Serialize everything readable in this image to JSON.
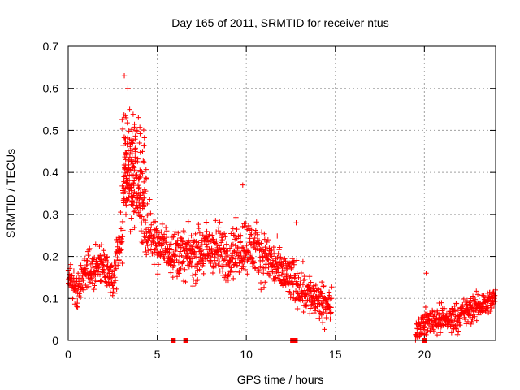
{
  "chart_data": {
    "type": "scatter",
    "title": "Day 165 of 2011, SRMTID for receiver ntus",
    "xlabel": "GPS time / hours",
    "ylabel": "SRMTID / TECUs",
    "xlim": [
      0,
      24
    ],
    "ylim": [
      0,
      0.7
    ],
    "x_ticks": [
      "0",
      "5",
      "10",
      "15",
      "20"
    ],
    "y_ticks": [
      "0",
      "0.1",
      "0.2",
      "0.3",
      "0.4",
      "0.5",
      "0.6",
      "0.7"
    ],
    "grid": true,
    "marker": "plus",
    "series": [
      {
        "name": "SRMTID",
        "color": "#ff0000",
        "profile": [
          {
            "x": 0.0,
            "base": 0.14,
            "spread": 0.06
          },
          {
            "x": 0.5,
            "base": 0.12,
            "spread": 0.07
          },
          {
            "x": 1.0,
            "base": 0.16,
            "spread": 0.08
          },
          {
            "x": 1.5,
            "base": 0.17,
            "spread": 0.07
          },
          {
            "x": 2.0,
            "base": 0.18,
            "spread": 0.07
          },
          {
            "x": 2.5,
            "base": 0.14,
            "spread": 0.07
          },
          {
            "x": 3.0,
            "base": 0.25,
            "spread": 0.1
          },
          {
            "x": 3.3,
            "base": 0.4,
            "spread": 0.18
          },
          {
            "x": 3.8,
            "base": 0.34,
            "spread": 0.14
          },
          {
            "x": 4.5,
            "base": 0.26,
            "spread": 0.1
          },
          {
            "x": 5.0,
            "base": 0.23,
            "spread": 0.08
          },
          {
            "x": 6.0,
            "base": 0.21,
            "spread": 0.08
          },
          {
            "x": 7.0,
            "base": 0.2,
            "spread": 0.09
          },
          {
            "x": 8.0,
            "base": 0.22,
            "spread": 0.1
          },
          {
            "x": 9.0,
            "base": 0.2,
            "spread": 0.09
          },
          {
            "x": 10.0,
            "base": 0.23,
            "spread": 0.1
          },
          {
            "x": 11.0,
            "base": 0.2,
            "spread": 0.09
          },
          {
            "x": 12.0,
            "base": 0.16,
            "spread": 0.08
          },
          {
            "x": 13.0,
            "base": 0.13,
            "spread": 0.08
          },
          {
            "x": 14.0,
            "base": 0.09,
            "spread": 0.07
          },
          {
            "x": 14.8,
            "base": 0.08,
            "spread": 0.06
          }
        ],
        "profile_late": [
          {
            "x": 19.5,
            "base": 0.03,
            "spread": 0.04
          },
          {
            "x": 20.5,
            "base": 0.05,
            "spread": 0.05
          },
          {
            "x": 21.5,
            "base": 0.05,
            "spread": 0.05
          },
          {
            "x": 22.5,
            "base": 0.07,
            "spread": 0.05
          },
          {
            "x": 24.0,
            "base": 0.1,
            "spread": 0.04
          }
        ],
        "peaks": [
          {
            "x": 3.15,
            "y": 0.63
          },
          {
            "x": 3.35,
            "y": 0.6
          },
          {
            "x": 3.45,
            "y": 0.55
          },
          {
            "x": 3.8,
            "y": 0.5
          },
          {
            "x": 4.0,
            "y": 0.47
          },
          {
            "x": 9.8,
            "y": 0.37
          },
          {
            "x": 12.8,
            "y": 0.28
          },
          {
            "x": 20.1,
            "y": 0.16
          }
        ],
        "zero_points": [
          {
            "x": 5.9,
            "y": 0
          },
          {
            "x": 6.6,
            "y": 0
          },
          {
            "x": 12.6,
            "y": 0
          },
          {
            "x": 12.75,
            "y": 0
          },
          {
            "x": 20.0,
            "y": 0
          }
        ]
      }
    ]
  }
}
